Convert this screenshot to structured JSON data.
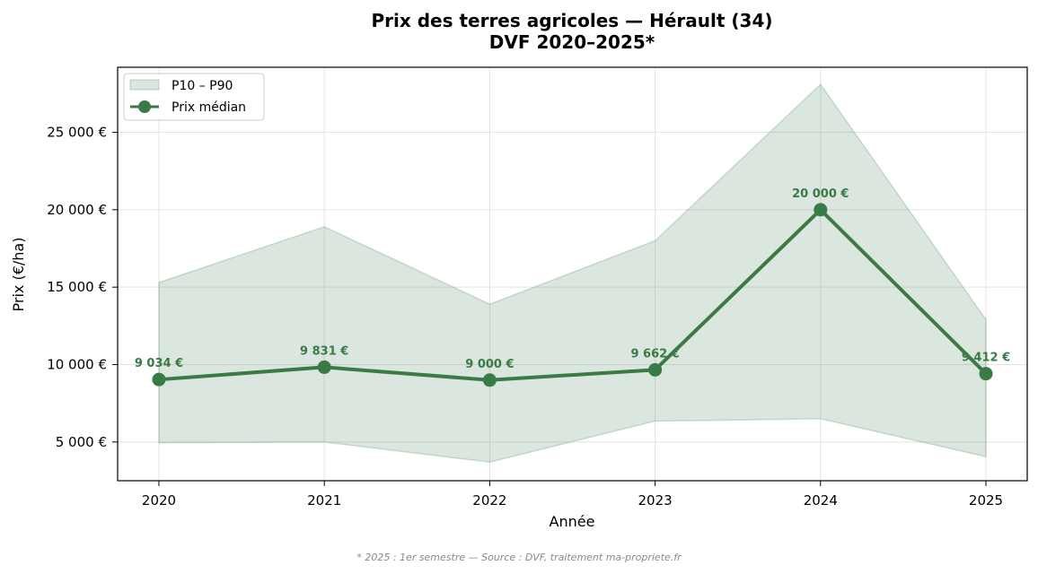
{
  "chart_data": {
    "type": "line",
    "title_line1": "Prix des terres agricoles — Hérault (34)",
    "title_line2": "DVF 2020–2025*",
    "xlabel": "Année",
    "ylabel": "Prix (€/ha)",
    "x": [
      "2020",
      "2021",
      "2022",
      "2023",
      "2024",
      "2025"
    ],
    "ylim": [
      2500,
      29200
    ],
    "yticks": [
      5000,
      10000,
      15000,
      20000,
      25000
    ],
    "ytick_labels": [
      "5 000 €",
      "10 000 €",
      "15 000 €",
      "20 000 €",
      "25 000 €"
    ],
    "grid": true,
    "legend_placement": "top-left",
    "series": [
      {
        "name": "Prix médian",
        "kind": "line",
        "color": "#3a7a46",
        "values": [
          9034,
          9831,
          9000,
          9662,
          20000,
          9412
        ],
        "labels": [
          "9 034 €",
          "9 831 €",
          "9 000 €",
          "9 662 €",
          "20 000 €",
          "9 412 €"
        ]
      }
    ],
    "band": {
      "name": "P10 – P90",
      "color": "#3a7a46",
      "lower": [
        4950,
        5000,
        3700,
        6350,
        6500,
        4050
      ],
      "upper": [
        15300,
        18900,
        13900,
        18000,
        28100,
        12900
      ]
    },
    "footnote": "* 2025 : 1er semestre — Source : DVF, traitement ma-propriete.fr"
  }
}
